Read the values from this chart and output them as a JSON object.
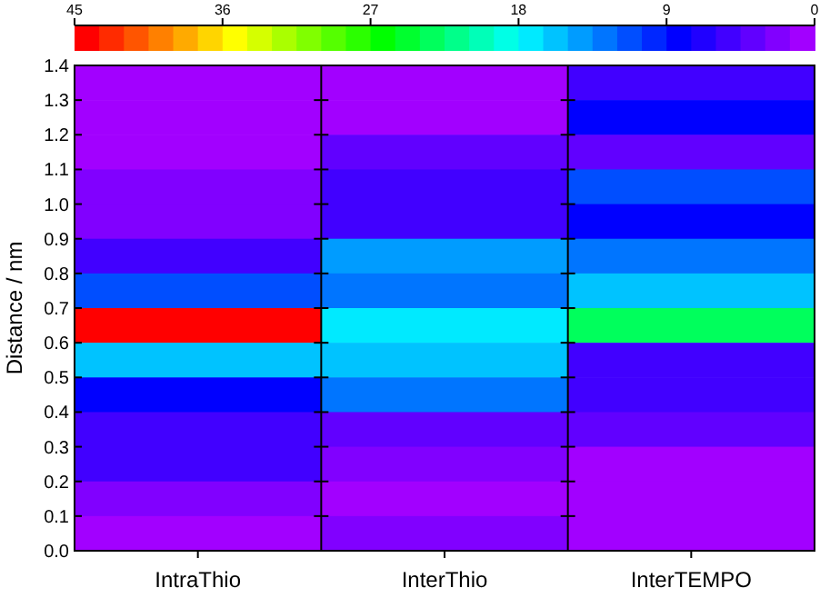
{
  "chart_data": {
    "type": "heatmap",
    "ylabel": "Distance / nm",
    "categories": [
      "IntraThio",
      "InterThio",
      "InterTEMPO"
    ],
    "ylim": [
      0,
      1.4
    ],
    "yticks": [
      {
        "value": 0,
        "label": "0.0"
      },
      0.1,
      0.2,
      0.3,
      0.4,
      0.5,
      0.6,
      0.7,
      0.8,
      0.9,
      {
        "value": 1,
        "label": "1.0"
      },
      1.1,
      1.2,
      1.3,
      1.4
    ],
    "cells": [
      [
        1,
        1,
        5
      ],
      [
        1,
        1,
        9
      ],
      [
        1,
        4,
        4
      ],
      [
        3,
        5,
        12
      ],
      [
        3,
        5,
        9
      ],
      [
        5,
        15,
        13
      ],
      [
        12,
        13,
        16
      ],
      [
        45,
        17,
        24
      ],
      [
        16,
        16,
        5
      ],
      [
        9,
        13,
        5
      ],
      [
        5,
        4,
        4
      ],
      [
        5,
        3,
        1
      ],
      [
        3,
        1,
        1
      ],
      [
        1,
        3,
        1
      ]
    ],
    "clim": [
      45,
      0
    ],
    "cticks": [
      45,
      36,
      27,
      18,
      9,
      0
    ]
  }
}
